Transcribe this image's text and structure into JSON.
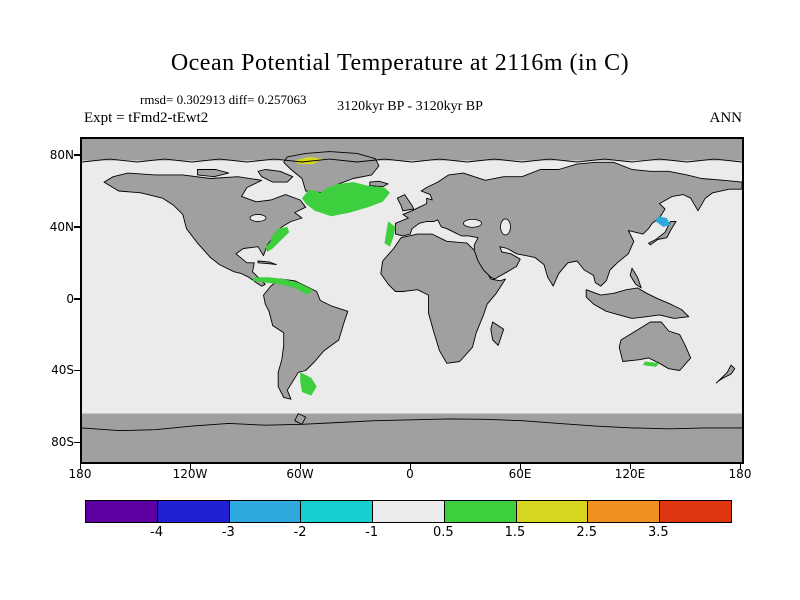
{
  "figure": {
    "title": "Ocean Potential Temperature at 2116m (in C)",
    "stats": "rmsd= 0.302913 diff= 0.257063",
    "period": "3120kyr BP - 3120kyr BP",
    "experiment": "Expt = tFmd2-tEwt2",
    "season": "ANN"
  },
  "axes": {
    "y_ticks": [
      "80N",
      "40N",
      "0",
      "40S",
      "80S"
    ],
    "x_ticks": [
      "180",
      "120W",
      "60W",
      "0",
      "60E",
      "120E",
      "180"
    ]
  },
  "colorbar": {
    "labels": [
      "-4",
      "-3",
      "-2",
      "-1",
      "0.5",
      "1.5",
      "2.5",
      "3.5"
    ],
    "colors": [
      "#5c00a3",
      "#2121d3",
      "#2fa8dd",
      "#16cfcf",
      "#ebebeb",
      "#3ecf3e",
      "#d6d621",
      "#ef9021",
      "#e03511"
    ]
  },
  "chart_data": {
    "type": "heatmap",
    "title": "Ocean Potential Temperature at 2116m (in C)",
    "variable": "Ocean Potential Temperature difference",
    "depth": "2116m",
    "units": "C",
    "rmsd": 0.302913,
    "diff": 0.257063,
    "period": "3120kyr BP - 3120kyr BP",
    "experiment": "tFmd2-tEwt2",
    "season": "ANN",
    "lon_range": [
      -180,
      180
    ],
    "lat_range": [
      -90,
      90
    ],
    "colorbar_boundaries": [
      -4,
      -3,
      -2,
      -1,
      0.5,
      1.5,
      2.5,
      3.5
    ],
    "background_band": {
      "value_range": "-1 to 0.5",
      "color": "#ebebeb"
    },
    "land_color": "#a0a0a0",
    "anomaly_regions": [
      {
        "name": "north-atlantic-subpolar",
        "value_range": "0.5 to 1.5",
        "color": "#3ecf3e",
        "polygon": [
          [
            -60,
            57
          ],
          [
            -56,
            62
          ],
          [
            -50,
            60
          ],
          [
            -46,
            63
          ],
          [
            -40,
            65
          ],
          [
            -32,
            66
          ],
          [
            -24,
            64
          ],
          [
            -15,
            63
          ],
          [
            -12,
            60
          ],
          [
            -16,
            55
          ],
          [
            -24,
            52
          ],
          [
            -34,
            49
          ],
          [
            -44,
            47
          ],
          [
            -53,
            50
          ],
          [
            -58,
            54
          ]
        ]
      },
      {
        "name": "us-east-coast",
        "value_range": "0.5 to 1.5",
        "color": "#3ecf3e",
        "polygon": [
          [
            -77,
            35
          ],
          [
            -73,
            40
          ],
          [
            -68,
            41
          ],
          [
            -67,
            38
          ],
          [
            -72,
            33
          ],
          [
            -76,
            29
          ],
          [
            -79,
            27
          ],
          [
            -80,
            30
          ],
          [
            -77,
            33
          ]
        ]
      },
      {
        "name": "caribbean-guiana",
        "value_range": "0.5 to 1.5",
        "color": "#3ecf3e",
        "polygon": [
          [
            -86,
            13
          ],
          [
            -78,
            13
          ],
          [
            -70,
            12
          ],
          [
            -62,
            10
          ],
          [
            -54,
            6
          ],
          [
            -57,
            3
          ],
          [
            -64,
            7
          ],
          [
            -72,
            9
          ],
          [
            -80,
            10
          ],
          [
            -87,
            11
          ]
        ]
      },
      {
        "name": "iberia-morocco-margin",
        "value_range": "0.5 to 1.5",
        "color": "#3ecf3e",
        "polygon": [
          [
            -13,
            44
          ],
          [
            -9,
            41
          ],
          [
            -10,
            36
          ],
          [
            -12,
            30
          ],
          [
            -15,
            32
          ],
          [
            -14,
            38
          ]
        ]
      },
      {
        "name": "argentine-basin",
        "value_range": "0.5 to 1.5",
        "color": "#3ecf3e",
        "polygon": [
          [
            -61,
            -40
          ],
          [
            -55,
            -43
          ],
          [
            -52,
            -48
          ],
          [
            -55,
            -53
          ],
          [
            -60,
            -51
          ],
          [
            -61,
            -45
          ]
        ]
      },
      {
        "name": "davis-strait",
        "value_range": "1.5 to 2.5",
        "color": "#d6d621",
        "polygon": [
          [
            -64,
            78
          ],
          [
            -56,
            80
          ],
          [
            -49,
            79
          ],
          [
            -54,
            76
          ],
          [
            -62,
            76
          ]
        ]
      },
      {
        "name": "sea-of-japan",
        "value_range": "-3 to -2",
        "color": "#2fa8dd",
        "polygon": [
          [
            134,
            47
          ],
          [
            139,
            46
          ],
          [
            141,
            42
          ],
          [
            137,
            41
          ],
          [
            133,
            44
          ]
        ]
      },
      {
        "name": "south-australia-margin",
        "value_range": "0.5 to 1.5",
        "color": "#3ecf3e",
        "polygon": [
          [
            127,
            -34
          ],
          [
            135,
            -35
          ],
          [
            133,
            -37
          ],
          [
            126,
            -36
          ]
        ]
      }
    ]
  }
}
